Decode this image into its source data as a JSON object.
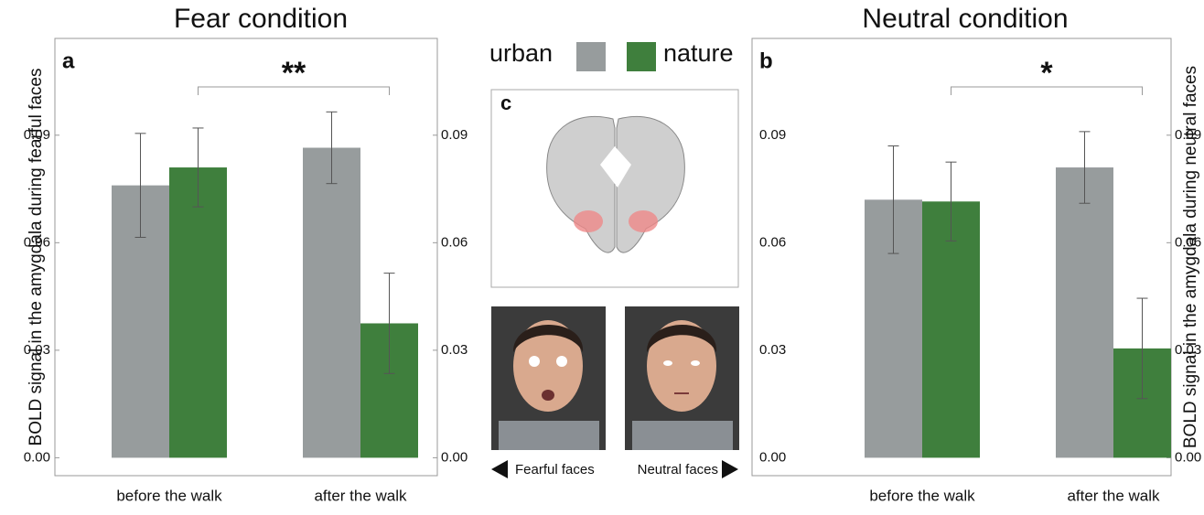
{
  "chart_data": [
    {
      "type": "bar",
      "title": "Fear condition",
      "panel": "a",
      "y_label": "BOLD signal in the amygdala during fearful faces",
      "categories": [
        "before the walk",
        "after the walk"
      ],
      "series": [
        {
          "name": "urban",
          "color": "#979c9d",
          "values": [
            0.076,
            0.0865
          ],
          "errors": [
            0.0145,
            0.01
          ]
        },
        {
          "name": "nature",
          "color": "#3f7f3d",
          "values": [
            0.081,
            0.0375
          ],
          "errors": [
            0.011,
            0.014
          ]
        }
      ],
      "annotation": "**",
      "ylim": [
        -0.005,
        0.117
      ],
      "yticks": [
        {
          "value": 0,
          "label": "0.00"
        },
        0.03,
        0.06,
        0.09
      ]
    },
    {
      "type": "bar",
      "title": "Neutral condition",
      "panel": "b",
      "y_label": "BOLD signal in the amygdala during neutral faces",
      "categories": [
        "before the walk",
        "after the walk"
      ],
      "series": [
        {
          "color": "#979c9d",
          "values": [
            0.072,
            0.081
          ],
          "errors": [
            0.015,
            0.01
          ]
        },
        {
          "color": "#3f7f3d",
          "values": [
            0.0715,
            0.0305
          ],
          "errors": [
            0.011,
            0.014
          ]
        }
      ],
      "annotation": "*",
      "ylim": [
        -0.005,
        0.117
      ],
      "yticks": [
        {
          "value": 0,
          "label": "0.00"
        },
        0.03,
        0.06,
        0.09
      ]
    }
  ],
  "panel_c": {
    "label": "c",
    "images": [
      "Fearful faces",
      "Neutral faces"
    ]
  }
}
